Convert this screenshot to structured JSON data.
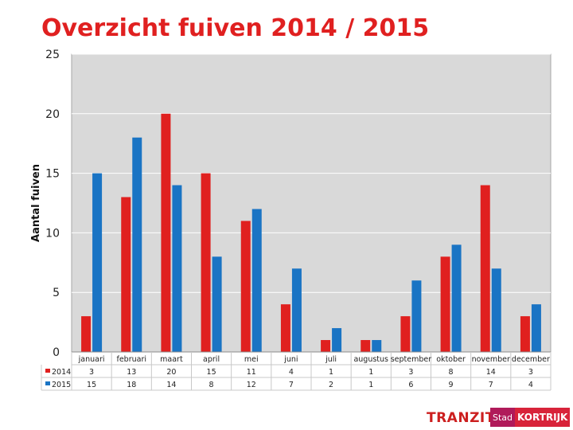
{
  "colors": {
    "series_2014": "#e0201f",
    "series_2015": "#1a74c4",
    "plot_bg": "#d9d9d9",
    "title": "#e02020"
  },
  "logos": {
    "tranzit": "TRANZIT",
    "stad": "Stad",
    "city": "KORTRIJK"
  },
  "chart_data": {
    "type": "bar",
    "title": "Overzicht fuiven 2014 / 2015",
    "xlabel": "",
    "ylabel": "Aantal fuiven",
    "ylim": [
      0,
      25
    ],
    "yticks": [
      "0",
      "5",
      "10",
      "15",
      "20",
      "25"
    ],
    "categories": [
      "januari",
      "februari",
      "maart",
      "april",
      "mei",
      "juni",
      "juli",
      "augustus",
      "september",
      "oktober",
      "november",
      "december"
    ],
    "series": [
      {
        "name": "2014",
        "values": [
          3,
          13,
          20,
          15,
          11,
          4,
          1,
          1,
          3,
          8,
          14,
          3
        ]
      },
      {
        "name": "2015",
        "values": [
          15,
          18,
          14,
          8,
          12,
          7,
          2,
          1,
          6,
          9,
          7,
          4
        ]
      }
    ]
  }
}
